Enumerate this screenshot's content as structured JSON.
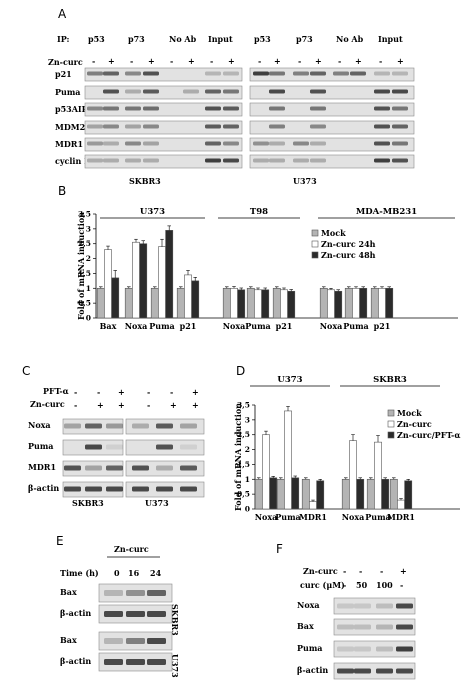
{
  "panelA": {
    "letter": "A",
    "ip_label": "IP:",
    "ip_groups": [
      "p53",
      "p73",
      "No Ab",
      "Input",
      "p53",
      "p73",
      "No Ab",
      "Input"
    ],
    "zn_label": "Zn-curc",
    "zn_signs": [
      "-",
      "+",
      "-",
      "+",
      "-",
      "+",
      "-",
      "+",
      "-",
      "+",
      "-",
      "+",
      "-",
      "+",
      "-",
      "+"
    ],
    "rows": [
      "p21",
      "Puma",
      "p53AIP1",
      "MDM2",
      "MDR1",
      "cyclin B1"
    ],
    "cell_lines": [
      "SKBR3",
      "U373"
    ]
  },
  "panelB": {
    "letter": "B",
    "groups": [
      "U373",
      "T98",
      "MDA-MB231"
    ],
    "legend": [
      "Mock",
      "Zn-curc 24h",
      "Zn-curc 48h"
    ],
    "ylabel": "Fold of mRNA induction"
  },
  "panelC": {
    "letter": "C",
    "pft_label": "PFT-α",
    "zn_label": "Zn-curc",
    "pft_signs": [
      "-",
      "-",
      "+",
      "-",
      "-",
      "+"
    ],
    "zn_signs": [
      "-",
      "+",
      "+",
      "-",
      "+",
      "+"
    ],
    "rows": [
      "Noxa",
      "Puma",
      "MDR1",
      "β-actin"
    ],
    "cell_lines": [
      "SKBR3",
      "U373"
    ]
  },
  "panelD": {
    "letter": "D",
    "groups": [
      "U373",
      "SKBR3"
    ],
    "legend": [
      "Mock",
      "Zn-curc",
      "Zn-curc/PFT-α"
    ],
    "ylabel": "Fold of mRNA induction"
  },
  "panelE": {
    "letter": "E",
    "zn_label": "Zn-curc",
    "time_label": "Time (h)",
    "times": [
      "0",
      "16",
      "24"
    ],
    "rows": [
      "Bax",
      "β-actin",
      "Bax",
      "β-actin"
    ],
    "cell_lines": [
      "SKBR3",
      "U373"
    ]
  },
  "panelF": {
    "letter": "F",
    "zn_label": "Zn-curc",
    "curc_label": "curc (μM)",
    "zn_signs": [
      "-",
      "-",
      "-",
      "+"
    ],
    "curc_values": [
      "-",
      "50",
      "100",
      "-"
    ],
    "rows": [
      "Noxa",
      "Bax",
      "Puma",
      "β-actin"
    ]
  },
  "colors": {
    "mock": "#b4b4b4",
    "zn24": "#ffffff",
    "zn48": "#2b2b2b",
    "band": "#2e2e2e",
    "strip": "#e2e2e2"
  },
  "chart_data": [
    {
      "type": "bar",
      "title": "",
      "ylabel": "Fold of mRNA induction",
      "ylim": [
        0,
        3.5
      ],
      "yticks": [
        "0",
        "0,5",
        "1",
        "1,5",
        "2",
        "2,5",
        "3",
        "3,5"
      ],
      "categories": [
        "Bax",
        "Noxa",
        "Puma",
        "p21",
        "Noxa",
        "Puma",
        "p21",
        "Noxa",
        "Puma",
        "p21"
      ],
      "group_labels": [
        "U373",
        "T98",
        "MDA-MB231"
      ],
      "series": [
        {
          "name": "Mock",
          "values": [
            1.0,
            1.0,
            1.0,
            1.0,
            1.0,
            1.0,
            1.0,
            1.0,
            1.0,
            1.0
          ]
        },
        {
          "name": "Zn-curc 24h",
          "values": [
            2.3,
            2.55,
            2.4,
            1.45,
            1.0,
            0.95,
            0.95,
            0.95,
            1.0,
            1.0
          ]
        },
        {
          "name": "Zn-curc 48h",
          "values": [
            1.35,
            2.5,
            2.95,
            1.25,
            0.95,
            0.95,
            0.9,
            0.9,
            1.0,
            1.0
          ]
        }
      ],
      "errors": [
        [
          0.05,
          0.05,
          0.05,
          0.05,
          0.05,
          0.05,
          0.05,
          0.05,
          0.05,
          0.05
        ],
        [
          0.12,
          0.1,
          0.25,
          0.15,
          0.06,
          0.06,
          0.06,
          0.05,
          0.05,
          0.05
        ],
        [
          0.25,
          0.1,
          0.15,
          0.12,
          0.06,
          0.06,
          0.06,
          0.05,
          0.05,
          0.05
        ]
      ],
      "legend_position": "top-right",
      "grid": false
    },
    {
      "type": "bar",
      "title": "",
      "ylabel": "Fold of mRNA induction",
      "ylim": [
        0,
        3.5
      ],
      "yticks": [
        "0",
        "0,5",
        "1",
        "1,5",
        "2",
        "2,5",
        "3",
        "3,5"
      ],
      "categories": [
        "Noxa",
        "Puma",
        "MDR1",
        "Noxa",
        "Puma",
        "MDR1"
      ],
      "group_labels": [
        "U373",
        "SKBR3"
      ],
      "series": [
        {
          "name": "Mock",
          "values": [
            1.0,
            1.0,
            1.0,
            1.0,
            1.0,
            1.0
          ]
        },
        {
          "name": "Zn-curc",
          "values": [
            2.5,
            3.3,
            0.25,
            2.3,
            2.25,
            0.3
          ]
        },
        {
          "name": "Zn-curc/PFT-α",
          "values": [
            1.05,
            1.05,
            0.95,
            1.0,
            1.0,
            0.95
          ]
        }
      ],
      "errors": [
        [
          0.05,
          0.05,
          0.05,
          0.05,
          0.05,
          0.05
        ],
        [
          0.12,
          0.15,
          0.05,
          0.2,
          0.22,
          0.05
        ],
        [
          0.05,
          0.06,
          0.05,
          0.05,
          0.05,
          0.05
        ]
      ],
      "legend_position": "top-right",
      "grid": false
    }
  ]
}
